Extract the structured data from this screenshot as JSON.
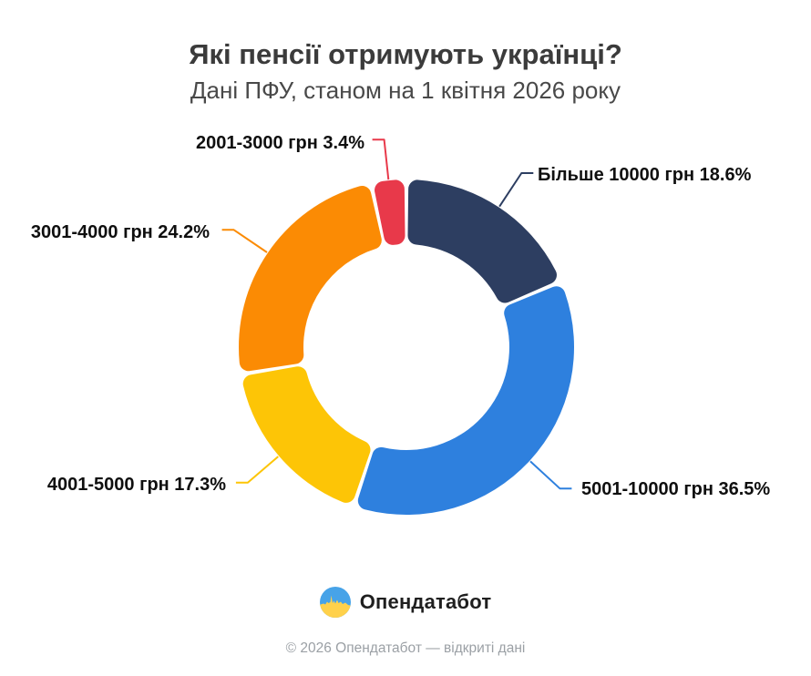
{
  "header": {
    "title": "Які пенсії отримують українці?",
    "subtitle": "Дані ПФУ, станом на 1 квітня 2026 року"
  },
  "chart_data": {
    "type": "pie",
    "variant": "donut",
    "title": "Які пенсії отримують українці?",
    "subtitle": "Дані ПФУ, станом на 1 квітня 2026 року",
    "unit": "%",
    "total": 100,
    "start_angle_deg": 0,
    "direction": "clockwise",
    "inner_radius_ratio": 0.61,
    "legend": "callout-labels",
    "slices": [
      {
        "label": "Більше 10000 грн",
        "value": 18.6,
        "color": "#2d3e61",
        "callout": "Більше 10000 грн 18.6%",
        "callout_side": "right"
      },
      {
        "label": "5001-10000 грн",
        "value": 36.5,
        "color": "#2e80de",
        "callout": "5001-10000 грн 36.5%",
        "callout_side": "right"
      },
      {
        "label": "4001-5000 грн",
        "value": 17.3,
        "color": "#fdc506",
        "callout": "4001-5000 грн 17.3%",
        "callout_side": "left"
      },
      {
        "label": "3001-4000 грн",
        "value": 24.2,
        "color": "#fb8b04",
        "callout": "3001-4000 грн 24.2%",
        "callout_side": "left"
      },
      {
        "label": "2001-3000 грн",
        "value": 3.4,
        "color": "#e8394a",
        "callout": "2001-3000 грн 3.4%",
        "callout_side": "left"
      }
    ]
  },
  "footer": {
    "brand": "Опендатабот",
    "copyright": "© 2026 Опендатабот — відкриті дані",
    "logo": {
      "blue": "#47a3e8",
      "yellow": "#ffd14b"
    }
  }
}
